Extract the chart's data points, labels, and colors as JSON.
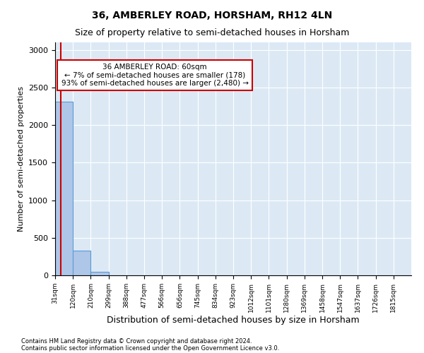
{
  "title1": "36, AMBERLEY ROAD, HORSHAM, RH12 4LN",
  "title2": "Size of property relative to semi-detached houses in Horsham",
  "xlabel": "Distribution of semi-detached houses by size in Horsham",
  "ylabel": "Number of semi-detached properties",
  "footnote1": "Contains HM Land Registry data © Crown copyright and database right 2024.",
  "footnote2": "Contains public sector information licensed under the Open Government Licence v3.0.",
  "bin_labels": [
    "31sqm",
    "120sqm",
    "210sqm",
    "299sqm",
    "388sqm",
    "477sqm",
    "566sqm",
    "656sqm",
    "745sqm",
    "834sqm",
    "923sqm",
    "1012sqm",
    "1101sqm",
    "1280sqm",
    "1369sqm",
    "1458sqm",
    "1547sqm",
    "1637sqm",
    "1726sqm",
    "1815sqm"
  ],
  "bar_values": [
    2310,
    330,
    50,
    0,
    0,
    0,
    0,
    0,
    0,
    0,
    0,
    0,
    0,
    0,
    0,
    0,
    0,
    0,
    0,
    0
  ],
  "bar_color": "#aec6e8",
  "bar_edge_color": "#5b9bd5",
  "ylim": [
    0,
    3100
  ],
  "yticks": [
    0,
    500,
    1000,
    1500,
    2000,
    2500,
    3000
  ],
  "property_label": "36 AMBERLEY ROAD: 60sqm",
  "annotation_line1": "← 7% of semi-detached houses are smaller (178)",
  "annotation_line2": "93% of semi-detached houses are larger (2,480) →",
  "annotation_box_color": "#ffffff",
  "annotation_box_edge_color": "#cc0000",
  "red_line_color": "#cc0000",
  "plot_bg_color": "#dce9f5",
  "grid_color": "#ffffff"
}
